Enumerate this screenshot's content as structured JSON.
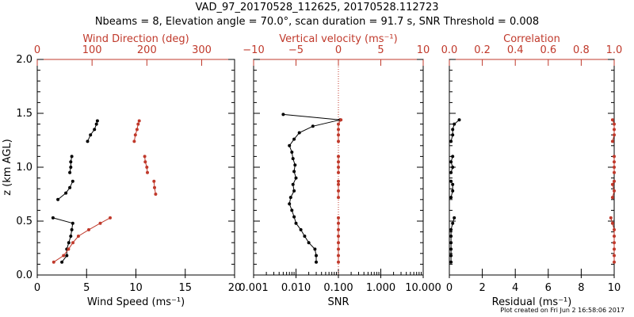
{
  "title": "VAD_97_20170528_112625, 20170528.112723",
  "subtitle": "Nbeams = 8, Elevation angle = 70.0°, scan duration = 91.7 s, SNR Threshold = 0.008",
  "footer": "Plot created on Fri Jun  2 16:58:06 2017",
  "colors": {
    "primary": "#000000",
    "secondary": "#c0392b"
  },
  "chart_data": [
    {
      "type": "line",
      "ylabel": "z (km AGL)",
      "ylim": [
        0,
        2.0
      ],
      "yticks": [
        "0.0",
        "0.5",
        "1.0",
        "1.5",
        "2.0"
      ],
      "yvals": [
        0,
        0.5,
        1.0,
        1.5,
        2.0
      ],
      "bottom_axis": {
        "label": "Wind Speed (ms⁻¹)",
        "lim": [
          0,
          20
        ],
        "ticks": [
          "0",
          "5",
          "10",
          "15",
          "20"
        ],
        "tickvals": [
          0,
          5,
          10,
          15,
          20
        ]
      },
      "top_axis": {
        "label": "Wind Direction (deg)",
        "lim": [
          0,
          360
        ],
        "ticks": [
          "0",
          "100",
          "200",
          "300"
        ],
        "tickvals": [
          0,
          100,
          200,
          300
        ]
      },
      "series": [
        {
          "axis": "bottom",
          "color": "#000000",
          "points": [
            [
              2.5,
              0.12
            ],
            [
              3.0,
              0.18
            ],
            [
              3.0,
              0.24
            ],
            [
              3.2,
              0.3
            ],
            [
              3.4,
              0.36
            ],
            [
              3.5,
              0.42
            ],
            [
              3.6,
              0.48
            ],
            [
              1.6,
              0.53
            ]
          ]
        },
        {
          "axis": "bottom",
          "color": "#000000",
          "points": [
            [
              2.1,
              0.7
            ],
            [
              2.9,
              0.76
            ],
            [
              3.3,
              0.81
            ],
            [
              3.6,
              0.87
            ]
          ]
        },
        {
          "axis": "bottom",
          "color": "#000000",
          "points": [
            [
              3.3,
              0.95
            ],
            [
              3.4,
              1.0
            ],
            [
              3.4,
              1.05
            ],
            [
              3.5,
              1.1
            ]
          ]
        },
        {
          "axis": "bottom",
          "color": "#000000",
          "points": [
            [
              5.1,
              1.24
            ],
            [
              5.4,
              1.3
            ],
            [
              5.8,
              1.35
            ],
            [
              6.0,
              1.4
            ],
            [
              6.1,
              1.43
            ]
          ]
        },
        {
          "axis": "top",
          "color": "#c0392b",
          "points": [
            [
              30,
              0.12
            ],
            [
              48,
              0.18
            ],
            [
              57,
              0.24
            ],
            [
              65,
              0.3
            ],
            [
              75,
              0.36
            ],
            [
              94,
              0.42
            ],
            [
              115,
              0.48
            ],
            [
              133,
              0.53
            ]
          ]
        },
        {
          "axis": "top",
          "color": "#c0392b",
          "points": [
            [
              216,
              0.75
            ],
            [
              214,
              0.81
            ],
            [
              213,
              0.87
            ]
          ]
        },
        {
          "axis": "top",
          "color": "#c0392b",
          "points": [
            [
              201,
              0.95
            ],
            [
              200,
              1.0
            ],
            [
              197,
              1.05
            ],
            [
              196,
              1.1
            ]
          ]
        },
        {
          "axis": "top",
          "color": "#c0392b",
          "points": [
            [
              177,
              1.24
            ],
            [
              179,
              1.3
            ],
            [
              182,
              1.35
            ],
            [
              184,
              1.4
            ],
            [
              186,
              1.43
            ]
          ]
        }
      ]
    },
    {
      "type": "line",
      "ylim": [
        0,
        2.0
      ],
      "bottom_axis": {
        "label": "SNR",
        "scale": "log",
        "lim": [
          0.001,
          10
        ],
        "ticks": [
          "0.001",
          "0.010",
          "0.100",
          "1.000",
          "10.000"
        ],
        "tickvals": [
          0.001,
          0.01,
          0.1,
          1,
          10
        ]
      },
      "top_axis": {
        "label": "Vertical velocity (ms⁻¹)",
        "lim": [
          -10,
          10
        ],
        "ticks": [
          "−10",
          "−5",
          "0",
          "5",
          "10"
        ],
        "tickvals": [
          -10,
          -5,
          0,
          5,
          10
        ]
      },
      "reference_line": {
        "axis": "top",
        "value": 0
      },
      "series": [
        {
          "axis": "bottom",
          "color": "#000000",
          "points": [
            [
              0.03,
              0.12
            ],
            [
              0.03,
              0.18
            ],
            [
              0.028,
              0.24
            ],
            [
              0.02,
              0.3
            ],
            [
              0.016,
              0.36
            ],
            [
              0.013,
              0.42
            ],
            [
              0.01,
              0.48
            ],
            [
              0.009,
              0.54
            ],
            [
              0.008,
              0.6
            ],
            [
              0.007,
              0.66
            ],
            [
              0.0075,
              0.72
            ],
            [
              0.009,
              0.78
            ],
            [
              0.0085,
              0.84
            ],
            [
              0.01,
              0.9
            ],
            [
              0.009,
              0.96
            ],
            [
              0.0095,
              1.02
            ],
            [
              0.0085,
              1.08
            ],
            [
              0.008,
              1.14
            ],
            [
              0.007,
              1.2
            ],
            [
              0.009,
              1.26
            ],
            [
              0.012,
              1.32
            ],
            [
              0.025,
              1.38
            ],
            [
              0.11,
              1.44
            ],
            [
              0.005,
              1.49
            ]
          ]
        },
        {
          "axis": "top",
          "color": "#c0392b",
          "points": [
            [
              0,
              0.12
            ],
            [
              0,
              0.18
            ],
            [
              0,
              0.24
            ],
            [
              0,
              0.3
            ],
            [
              0,
              0.36
            ],
            [
              0,
              0.42
            ],
            [
              0,
              0.48
            ],
            [
              0,
              0.53
            ]
          ]
        },
        {
          "axis": "top",
          "color": "#c0392b",
          "points": [
            [
              0,
              0.72
            ],
            [
              0,
              0.78
            ],
            [
              0,
              0.84
            ],
            [
              0,
              0.87
            ]
          ]
        },
        {
          "axis": "top",
          "color": "#c0392b",
          "points": [
            [
              0,
              0.95
            ],
            [
              0,
              1.0
            ],
            [
              0,
              1.05
            ],
            [
              0,
              1.1
            ]
          ]
        },
        {
          "axis": "top",
          "color": "#c0392b",
          "points": [
            [
              0,
              1.24
            ],
            [
              0,
              1.3
            ],
            [
              0,
              1.35
            ],
            [
              0,
              1.4
            ],
            [
              0.3,
              1.44
            ]
          ]
        }
      ]
    },
    {
      "type": "line",
      "ylim": [
        0,
        2.0
      ],
      "bottom_axis": {
        "label": "Residual (ms⁻¹)",
        "lim": [
          0,
          10
        ],
        "ticks": [
          "0",
          "2",
          "4",
          "6",
          "8",
          "10"
        ],
        "tickvals": [
          0,
          2,
          4,
          6,
          8,
          10
        ]
      },
      "top_axis": {
        "label": "Correlation",
        "lim": [
          0,
          1
        ],
        "ticks": [
          "0.0",
          "0.2",
          "0.4",
          "0.6",
          "0.8",
          "1.0"
        ],
        "tickvals": [
          0,
          0.2,
          0.4,
          0.6,
          0.8,
          1.0
        ]
      },
      "series": [
        {
          "axis": "bottom",
          "color": "#000000",
          "points": [
            [
              0.1,
              0.12
            ],
            [
              0.1,
              0.18
            ],
            [
              0.1,
              0.24
            ],
            [
              0.1,
              0.3
            ],
            [
              0.1,
              0.36
            ],
            [
              0.1,
              0.42
            ],
            [
              0.2,
              0.48
            ],
            [
              0.3,
              0.53
            ]
          ]
        },
        {
          "axis": "bottom",
          "color": "#000000",
          "points": [
            [
              0.1,
              0.72
            ],
            [
              0.2,
              0.78
            ],
            [
              0.2,
              0.84
            ],
            [
              0.1,
              0.87
            ]
          ]
        },
        {
          "axis": "bottom",
          "color": "#000000",
          "points": [
            [
              0.1,
              0.95
            ],
            [
              0.2,
              1.0
            ],
            [
              0.1,
              1.05
            ],
            [
              0.2,
              1.1
            ]
          ]
        },
        {
          "axis": "bottom",
          "color": "#000000",
          "points": [
            [
              0.1,
              1.24
            ],
            [
              0.2,
              1.3
            ],
            [
              0.2,
              1.35
            ],
            [
              0.3,
              1.4
            ],
            [
              0.6,
              1.44
            ]
          ]
        },
        {
          "axis": "top",
          "color": "#c0392b",
          "points": [
            [
              1.0,
              0.12
            ],
            [
              1.0,
              0.18
            ],
            [
              1.0,
              0.24
            ],
            [
              1.0,
              0.3
            ],
            [
              1.0,
              0.36
            ],
            [
              1.0,
              0.42
            ],
            [
              0.99,
              0.48
            ],
            [
              0.98,
              0.53
            ]
          ]
        },
        {
          "axis": "top",
          "color": "#c0392b",
          "points": [
            [
              0.99,
              0.72
            ],
            [
              1.0,
              0.78
            ],
            [
              0.99,
              0.84
            ],
            [
              1.0,
              0.87
            ]
          ]
        },
        {
          "axis": "top",
          "color": "#c0392b",
          "points": [
            [
              1.0,
              0.95
            ],
            [
              1.0,
              1.0
            ],
            [
              1.0,
              1.05
            ],
            [
              1.0,
              1.1
            ]
          ]
        },
        {
          "axis": "top",
          "color": "#c0392b",
          "points": [
            [
              0.99,
              1.24
            ],
            [
              1.0,
              1.3
            ],
            [
              1.0,
              1.35
            ],
            [
              1.0,
              1.4
            ],
            [
              0.99,
              1.44
            ]
          ]
        }
      ]
    }
  ]
}
